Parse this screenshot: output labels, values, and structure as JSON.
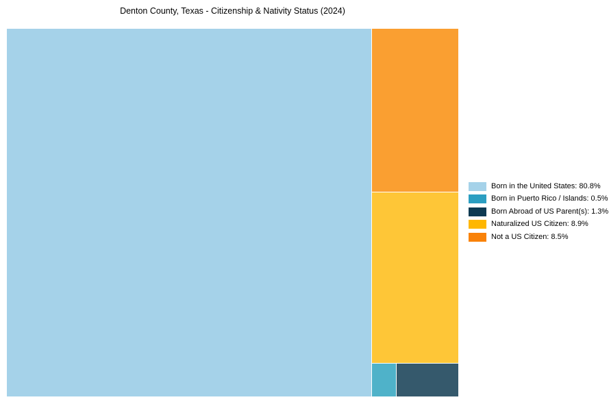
{
  "title": "Denton County, Texas - Citizenship & Nativity Status (2024)",
  "chart_data": {
    "type": "treemap",
    "title": "Denton County, Texas - Citizenship & Nativity Status (2024)",
    "unit": "%",
    "legend_position": "right",
    "grid": false,
    "series": [
      {
        "label": "Born in the United States",
        "value": 80.8,
        "legend_text": "Born in the United States: 80.8%",
        "tile_color": "#a5d2e9",
        "legend_color": "#a5d2e9"
      },
      {
        "label": "Born in Puerto Rico / Islands",
        "value": 0.5,
        "legend_text": "Born in Puerto Rico / Islands: 0.5%",
        "tile_color": "#4fb2c9",
        "legend_color": "#2b9ec1"
      },
      {
        "label": "Born Abroad of US Parent(s)",
        "value": 1.3,
        "legend_text": "Born Abroad of US Parent(s): 1.3%",
        "tile_color": "#35596c",
        "legend_color": "#0e3a52"
      },
      {
        "label": "Naturalized US Citizen",
        "value": 8.9,
        "legend_text": "Naturalized US Citizen: 8.9%",
        "tile_color": "#fec637",
        "legend_color": "#ffb700"
      },
      {
        "label": "Not a US Citizen",
        "value": 8.5,
        "legend_text": "Not a US Citizen: 8.5%",
        "tile_color": "#fa9f31",
        "legend_color": "#f98208"
      }
    ]
  }
}
